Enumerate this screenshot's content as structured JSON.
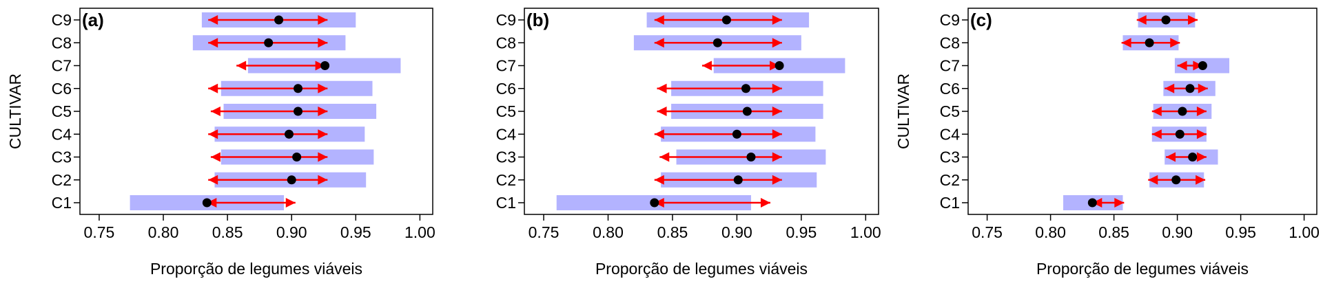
{
  "chart_data": [
    {
      "type": "interval",
      "panel_label": "(a)",
      "xlabel": "Proporção de legumes viáveis",
      "ylabel": "CULTIVAR",
      "xlim": [
        0.735,
        1.01
      ],
      "xticks": [
        "0.75",
        "0.80",
        "0.85",
        "0.90",
        "0.95",
        "1.00"
      ],
      "categories": [
        "C1",
        "C2",
        "C3",
        "C4",
        "C5",
        "C6",
        "C7",
        "C8",
        "C9"
      ],
      "estimate": [
        0.834,
        0.9,
        0.904,
        0.898,
        0.905,
        0.905,
        0.926,
        0.882,
        0.89
      ],
      "band": [
        [
          0.774,
          0.894
        ],
        [
          0.84,
          0.958
        ],
        [
          0.845,
          0.964
        ],
        [
          0.84,
          0.957
        ],
        [
          0.847,
          0.966
        ],
        [
          0.845,
          0.963
        ],
        [
          0.866,
          0.985
        ],
        [
          0.823,
          0.942
        ],
        [
          0.83,
          0.95
        ]
      ],
      "arrow": [
        [
          0.834,
          0.903
        ],
        [
          0.835,
          0.928
        ],
        [
          0.837,
          0.928
        ],
        [
          0.835,
          0.928
        ],
        [
          0.837,
          0.928
        ],
        [
          0.835,
          0.928
        ],
        [
          0.857,
          0.926
        ],
        [
          0.835,
          0.928
        ],
        [
          0.835,
          0.928
        ]
      ]
    },
    {
      "type": "interval",
      "panel_label": "(b)",
      "xlabel": "Proporção de legumes viáveis",
      "ylabel": "",
      "xlim": [
        0.735,
        1.01
      ],
      "xticks": [
        "0.75",
        "0.80",
        "0.85",
        "0.90",
        "0.95",
        "1.00"
      ],
      "categories": [
        "C1",
        "C2",
        "C3",
        "C4",
        "C5",
        "C6",
        "C7",
        "C8",
        "C9"
      ],
      "estimate": [
        0.836,
        0.901,
        0.911,
        0.9,
        0.908,
        0.907,
        0.933,
        0.885,
        0.892
      ],
      "band": [
        [
          0.76,
          0.911
        ],
        [
          0.841,
          0.962
        ],
        [
          0.853,
          0.969
        ],
        [
          0.841,
          0.961
        ],
        [
          0.849,
          0.967
        ],
        [
          0.849,
          0.967
        ],
        [
          0.882,
          0.984
        ],
        [
          0.82,
          0.95
        ],
        [
          0.83,
          0.956
        ]
      ],
      "arrow": [
        [
          0.836,
          0.926
        ],
        [
          0.836,
          0.935
        ],
        [
          0.84,
          0.935
        ],
        [
          0.836,
          0.935
        ],
        [
          0.838,
          0.935
        ],
        [
          0.838,
          0.935
        ],
        [
          0.873,
          0.933
        ],
        [
          0.836,
          0.935
        ],
        [
          0.836,
          0.935
        ]
      ]
    },
    {
      "type": "interval",
      "panel_label": "(c)",
      "xlabel": "Proporção de legumes viáveis",
      "ylabel": "CULTIVAR",
      "xlim": [
        0.735,
        1.01
      ],
      "xticks": [
        "0.75",
        "0.80",
        "0.85",
        "0.90",
        "0.95",
        "1.00"
      ],
      "categories": [
        "C1",
        "C2",
        "C3",
        "C4",
        "C5",
        "C6",
        "C7",
        "C8",
        "C9"
      ],
      "estimate": [
        0.833,
        0.899,
        0.912,
        0.902,
        0.904,
        0.91,
        0.92,
        0.878,
        0.891
      ],
      "band": [
        [
          0.81,
          0.857
        ],
        [
          0.878,
          0.921
        ],
        [
          0.89,
          0.932
        ],
        [
          0.88,
          0.923
        ],
        [
          0.881,
          0.927
        ],
        [
          0.889,
          0.93
        ],
        [
          0.898,
          0.941
        ],
        [
          0.857,
          0.901
        ],
        [
          0.869,
          0.914
        ]
      ],
      "arrow": [
        [
          0.833,
          0.858
        ],
        [
          0.877,
          0.922
        ],
        [
          0.891,
          0.923
        ],
        [
          0.88,
          0.923
        ],
        [
          0.88,
          0.923
        ],
        [
          0.89,
          0.924
        ],
        [
          0.9,
          0.92
        ],
        [
          0.856,
          0.902
        ],
        [
          0.868,
          0.916
        ]
      ]
    }
  ],
  "colors": {
    "band": "#b3b3ff",
    "arrow": "#ff0000",
    "point": "#000000",
    "axis": "#000000"
  }
}
